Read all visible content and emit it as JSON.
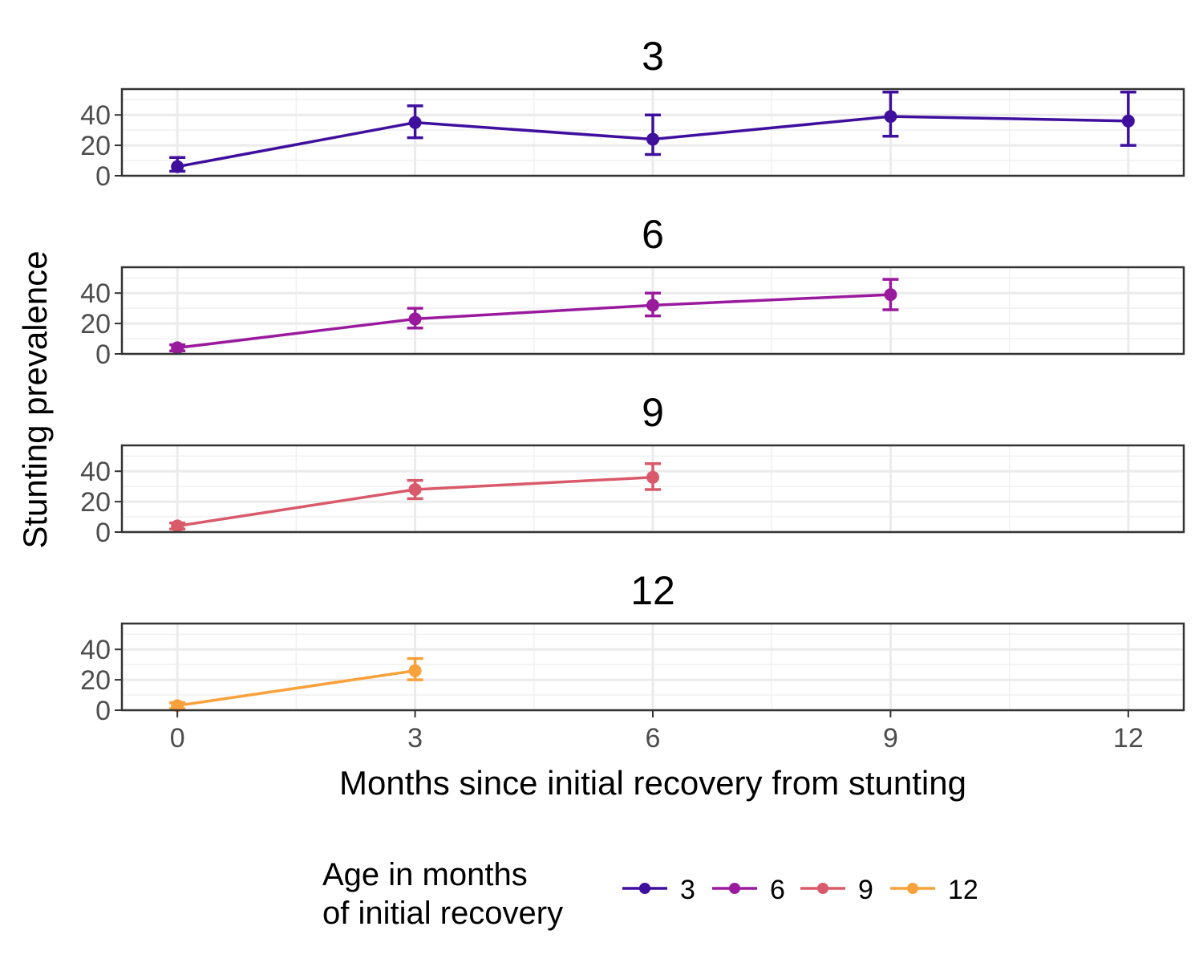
{
  "chart_data": {
    "type": "line",
    "xlabel": "Months since initial recovery from stunting",
    "ylabel": "Stunting prevalence",
    "xlim": [
      -0.7,
      12.7
    ],
    "ylim": [
      0,
      57
    ],
    "x_ticks": [
      0,
      3,
      6,
      9,
      12
    ],
    "y_ticks": [
      0,
      20,
      40
    ],
    "grid": true,
    "error_bars": true,
    "legend": {
      "title_lines": [
        "Age in months",
        "of initial recovery"
      ],
      "placement": "bottom"
    },
    "facets": [
      {
        "title": "3",
        "series": "3",
        "color": "#3F0F9E",
        "points": [
          {
            "x": 0,
            "y": 6,
            "lo": 3,
            "hi": 12
          },
          {
            "x": 3,
            "y": 35,
            "lo": 25,
            "hi": 46
          },
          {
            "x": 6,
            "y": 24,
            "lo": 14,
            "hi": 40
          },
          {
            "x": 9,
            "y": 39,
            "lo": 26,
            "hi": 55
          },
          {
            "x": 12,
            "y": 36,
            "lo": 20,
            "hi": 55
          }
        ]
      },
      {
        "title": "6",
        "series": "6",
        "color": "#9A1A9E",
        "points": [
          {
            "x": 0,
            "y": 4,
            "lo": 2,
            "hi": 6
          },
          {
            "x": 3,
            "y": 23,
            "lo": 17,
            "hi": 30
          },
          {
            "x": 6,
            "y": 32,
            "lo": 25,
            "hi": 40
          },
          {
            "x": 9,
            "y": 39,
            "lo": 29,
            "hi": 49
          }
        ]
      },
      {
        "title": "9",
        "series": "9",
        "color": "#D95A6A",
        "points": [
          {
            "x": 0,
            "y": 4,
            "lo": 2,
            "hi": 6
          },
          {
            "x": 3,
            "y": 28,
            "lo": 22,
            "hi": 34
          },
          {
            "x": 6,
            "y": 36,
            "lo": 28,
            "hi": 45
          }
        ]
      },
      {
        "title": "12",
        "series": "12",
        "color": "#F9A13A",
        "points": [
          {
            "x": 0,
            "y": 3,
            "lo": 1,
            "hi": 5
          },
          {
            "x": 3,
            "y": 26,
            "lo": 20,
            "hi": 34
          }
        ]
      }
    ]
  }
}
